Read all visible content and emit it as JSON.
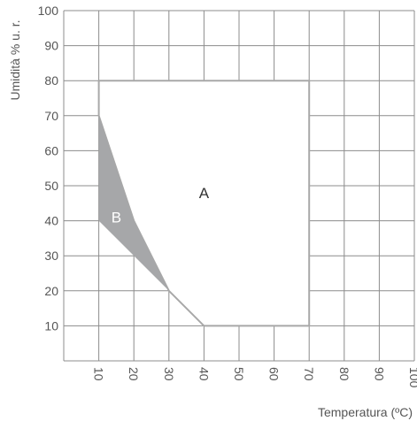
{
  "chart_data": {
    "type": "area",
    "xlabel": "Temperatura (ºC)",
    "ylabel": "Umidità % u. r.",
    "xlim": [
      0,
      100
    ],
    "ylim": [
      0,
      100
    ],
    "x_ticks": [
      "10",
      "20",
      "30",
      "40",
      "50",
      "60",
      "70",
      "80",
      "90",
      "100"
    ],
    "y_ticks": [
      "10",
      "20",
      "30",
      "40",
      "50",
      "60",
      "70",
      "80",
      "90",
      "100"
    ],
    "grid": true,
    "regions": [
      {
        "label": "A",
        "fill": "#ffffff",
        "outline": "#a8a8a8",
        "points": [
          [
            10,
            70
          ],
          [
            10,
            80
          ],
          [
            70,
            80
          ],
          [
            70,
            10
          ],
          [
            40,
            10
          ],
          [
            30,
            20
          ],
          [
            20,
            40
          ],
          [
            10,
            70
          ]
        ]
      },
      {
        "label": "B",
        "fill": "#a6a7a9",
        "points": [
          [
            10,
            70
          ],
          [
            20,
            40
          ],
          [
            30,
            20
          ],
          [
            10,
            40
          ]
        ]
      }
    ],
    "region_labels": [
      {
        "text": "A",
        "x": 40,
        "y": 48,
        "color": "#333333"
      },
      {
        "text": "B",
        "x": 15,
        "y": 41,
        "color": "#ffffff"
      }
    ]
  }
}
